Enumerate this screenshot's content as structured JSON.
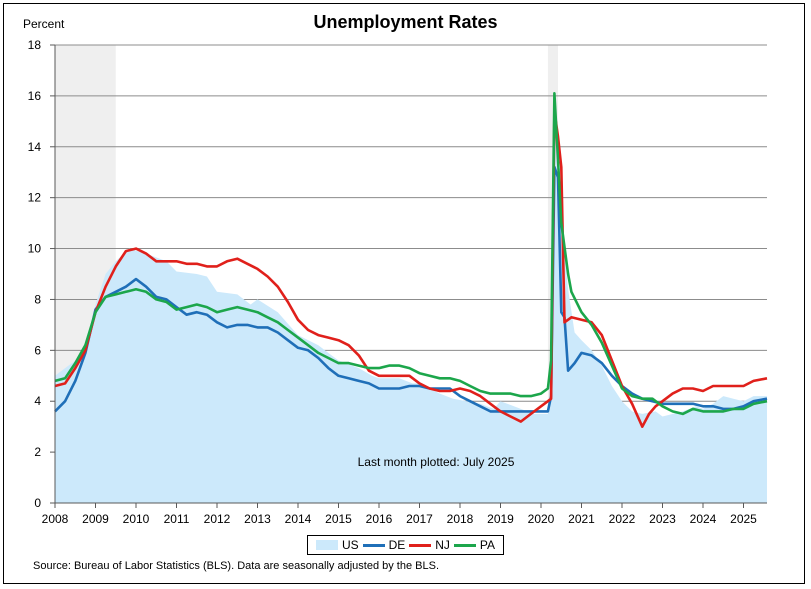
{
  "chart_data": {
    "type": "line",
    "title": "Unemployment Rates",
    "ylabel": "Percent",
    "xlabel": "",
    "ylim": [
      0,
      18
    ],
    "yticks": [
      0,
      2,
      4,
      6,
      8,
      10,
      12,
      14,
      16,
      18
    ],
    "xlim": [
      2008,
      2025.58
    ],
    "xticks": [
      "2008",
      "2009",
      "2010",
      "2011",
      "2012",
      "2013",
      "2014",
      "2015",
      "2016",
      "2017",
      "2018",
      "2019",
      "2020",
      "2021",
      "2022",
      "2023",
      "2024",
      "2025"
    ],
    "grid": "horizontal",
    "legend_position": "bottom",
    "recessions": [
      [
        2008.0,
        2009.5
      ],
      [
        2020.17,
        2020.42
      ]
    ],
    "annotation": "Last month plotted: July 2025",
    "source": "Source: Bureau of Labor Statistics (BLS). Data are seasonally adjusted by the BLS.",
    "series": [
      {
        "name": "US",
        "style": "area",
        "color": "#cce9fb",
        "points": [
          [
            2008,
            5.0
          ],
          [
            2008.5,
            5.6
          ],
          [
            2008.75,
            6.1
          ],
          [
            2009,
            7.8
          ],
          [
            2009.25,
            9.0
          ],
          [
            2009.5,
            9.5
          ],
          [
            2009.83,
            10.0
          ],
          [
            2010.25,
            9.8
          ],
          [
            2010.75,
            9.5
          ],
          [
            2011,
            9.1
          ],
          [
            2011.5,
            9.0
          ],
          [
            2011.75,
            8.9
          ],
          [
            2012,
            8.3
          ],
          [
            2012.5,
            8.2
          ],
          [
            2012.83,
            7.8
          ],
          [
            2013,
            8.0
          ],
          [
            2013.5,
            7.5
          ],
          [
            2013.83,
            6.9
          ],
          [
            2014,
            6.6
          ],
          [
            2014.5,
            6.2
          ],
          [
            2014.83,
            5.8
          ],
          [
            2015,
            5.6
          ],
          [
            2015.5,
            5.3
          ],
          [
            2015.83,
            5.0
          ],
          [
            2016,
            4.9
          ],
          [
            2016.5,
            4.9
          ],
          [
            2016.83,
            4.7
          ],
          [
            2017,
            4.7
          ],
          [
            2017.5,
            4.3
          ],
          [
            2017.83,
            4.1
          ],
          [
            2018.5,
            3.9
          ],
          [
            2018.83,
            3.7
          ],
          [
            2019,
            4.0
          ],
          [
            2019.5,
            3.7
          ],
          [
            2019.83,
            3.5
          ],
          [
            2020.17,
            3.5
          ],
          [
            2020.25,
            4.4
          ],
          [
            2020.33,
            14.8
          ],
          [
            2020.42,
            13.2
          ],
          [
            2020.5,
            11.0
          ],
          [
            2020.67,
            8.4
          ],
          [
            2020.83,
            6.7
          ],
          [
            2021,
            6.4
          ],
          [
            2021.25,
            6.0
          ],
          [
            2021.5,
            5.4
          ],
          [
            2021.75,
            4.6
          ],
          [
            2022,
            4.0
          ],
          [
            2022.25,
            3.6
          ],
          [
            2022.5,
            3.5
          ],
          [
            2022.83,
            3.6
          ],
          [
            2023,
            3.4
          ],
          [
            2023.5,
            3.6
          ],
          [
            2023.83,
            3.8
          ],
          [
            2024,
            3.7
          ],
          [
            2024.25,
            3.9
          ],
          [
            2024.5,
            4.2
          ],
          [
            2024.75,
            4.1
          ],
          [
            2025,
            4.0
          ],
          [
            2025.25,
            4.2
          ],
          [
            2025.5,
            4.2
          ],
          [
            2025.58,
            4.2
          ]
        ]
      },
      {
        "name": "DE",
        "style": "line",
        "color": "#1f6fb8",
        "points": [
          [
            2008,
            3.6
          ],
          [
            2008.25,
            4.0
          ],
          [
            2008.5,
            4.8
          ],
          [
            2008.75,
            5.9
          ],
          [
            2009,
            7.6
          ],
          [
            2009.25,
            8.1
          ],
          [
            2009.5,
            8.3
          ],
          [
            2009.75,
            8.5
          ],
          [
            2010,
            8.8
          ],
          [
            2010.25,
            8.5
          ],
          [
            2010.5,
            8.1
          ],
          [
            2010.75,
            8.0
          ],
          [
            2011,
            7.7
          ],
          [
            2011.25,
            7.4
          ],
          [
            2011.5,
            7.5
          ],
          [
            2011.75,
            7.4
          ],
          [
            2012,
            7.1
          ],
          [
            2012.25,
            6.9
          ],
          [
            2012.5,
            7.0
          ],
          [
            2012.75,
            7.0
          ],
          [
            2013,
            6.9
          ],
          [
            2013.25,
            6.9
          ],
          [
            2013.5,
            6.7
          ],
          [
            2013.75,
            6.4
          ],
          [
            2014,
            6.1
          ],
          [
            2014.25,
            6.0
          ],
          [
            2014.5,
            5.7
          ],
          [
            2014.75,
            5.3
          ],
          [
            2015,
            5.0
          ],
          [
            2015.25,
            4.9
          ],
          [
            2015.5,
            4.8
          ],
          [
            2015.75,
            4.7
          ],
          [
            2016,
            4.5
          ],
          [
            2016.5,
            4.5
          ],
          [
            2016.75,
            4.6
          ],
          [
            2017,
            4.6
          ],
          [
            2017.25,
            4.5
          ],
          [
            2017.5,
            4.5
          ],
          [
            2017.75,
            4.5
          ],
          [
            2018,
            4.2
          ],
          [
            2018.25,
            4.0
          ],
          [
            2018.5,
            3.8
          ],
          [
            2018.75,
            3.6
          ],
          [
            2019,
            3.6
          ],
          [
            2019.5,
            3.6
          ],
          [
            2019.75,
            3.6
          ],
          [
            2020,
            3.6
          ],
          [
            2020.17,
            3.6
          ],
          [
            2020.25,
            4.2
          ],
          [
            2020.33,
            13.2
          ],
          [
            2020.42,
            12.8
          ],
          [
            2020.5,
            7.5
          ],
          [
            2020.58,
            7.3
          ],
          [
            2020.67,
            5.2
          ],
          [
            2020.83,
            5.5
          ],
          [
            2021,
            5.9
          ],
          [
            2021.25,
            5.8
          ],
          [
            2021.5,
            5.5
          ],
          [
            2021.75,
            5.0
          ],
          [
            2022,
            4.6
          ],
          [
            2022.25,
            4.3
          ],
          [
            2022.5,
            4.1
          ],
          [
            2022.75,
            4.0
          ],
          [
            2023,
            3.9
          ],
          [
            2023.25,
            3.9
          ],
          [
            2023.5,
            3.9
          ],
          [
            2023.75,
            3.9
          ],
          [
            2024,
            3.8
          ],
          [
            2024.25,
            3.8
          ],
          [
            2024.5,
            3.7
          ],
          [
            2024.75,
            3.7
          ],
          [
            2025,
            3.8
          ],
          [
            2025.25,
            4.0
          ],
          [
            2025.58,
            4.1
          ]
        ]
      },
      {
        "name": "NJ",
        "style": "line",
        "color": "#e0201b",
        "points": [
          [
            2008,
            4.6
          ],
          [
            2008.25,
            4.7
          ],
          [
            2008.5,
            5.3
          ],
          [
            2008.75,
            6.0
          ],
          [
            2009,
            7.5
          ],
          [
            2009.25,
            8.5
          ],
          [
            2009.5,
            9.3
          ],
          [
            2009.75,
            9.9
          ],
          [
            2010,
            10.0
          ],
          [
            2010.25,
            9.8
          ],
          [
            2010.5,
            9.5
          ],
          [
            2010.75,
            9.5
          ],
          [
            2011,
            9.5
          ],
          [
            2011.25,
            9.4
          ],
          [
            2011.5,
            9.4
          ],
          [
            2011.75,
            9.3
          ],
          [
            2012,
            9.3
          ],
          [
            2012.25,
            9.5
          ],
          [
            2012.5,
            9.6
          ],
          [
            2012.75,
            9.4
          ],
          [
            2013,
            9.2
          ],
          [
            2013.25,
            8.9
          ],
          [
            2013.5,
            8.5
          ],
          [
            2013.75,
            7.9
          ],
          [
            2014,
            7.2
          ],
          [
            2014.25,
            6.8
          ],
          [
            2014.5,
            6.6
          ],
          [
            2014.75,
            6.5
          ],
          [
            2015,
            6.4
          ],
          [
            2015.25,
            6.2
          ],
          [
            2015.5,
            5.8
          ],
          [
            2015.75,
            5.2
          ],
          [
            2016,
            5.0
          ],
          [
            2016.25,
            5.0
          ],
          [
            2016.5,
            5.0
          ],
          [
            2016.75,
            5.0
          ],
          [
            2017,
            4.7
          ],
          [
            2017.25,
            4.5
          ],
          [
            2017.5,
            4.4
          ],
          [
            2017.75,
            4.4
          ],
          [
            2018,
            4.5
          ],
          [
            2018.25,
            4.4
          ],
          [
            2018.5,
            4.2
          ],
          [
            2018.75,
            3.9
          ],
          [
            2019,
            3.6
          ],
          [
            2019.25,
            3.4
          ],
          [
            2019.5,
            3.2
          ],
          [
            2019.75,
            3.5
          ],
          [
            2020,
            3.8
          ],
          [
            2020.17,
            4.0
          ],
          [
            2020.25,
            4.1
          ],
          [
            2020.33,
            15.4
          ],
          [
            2020.42,
            14.4
          ],
          [
            2020.5,
            13.2
          ],
          [
            2020.58,
            7.1
          ],
          [
            2020.75,
            7.3
          ],
          [
            2021,
            7.2
          ],
          [
            2021.25,
            7.1
          ],
          [
            2021.5,
            6.6
          ],
          [
            2021.75,
            5.6
          ],
          [
            2022,
            4.6
          ],
          [
            2022.25,
            3.9
          ],
          [
            2022.5,
            3.0
          ],
          [
            2022.67,
            3.5
          ],
          [
            2022.83,
            3.8
          ],
          [
            2023,
            4.0
          ],
          [
            2023.25,
            4.3
          ],
          [
            2023.5,
            4.5
          ],
          [
            2023.75,
            4.5
          ],
          [
            2024,
            4.4
          ],
          [
            2024.25,
            4.6
          ],
          [
            2024.5,
            4.6
          ],
          [
            2024.75,
            4.6
          ],
          [
            2025,
            4.6
          ],
          [
            2025.25,
            4.8
          ],
          [
            2025.58,
            4.9
          ]
        ]
      },
      {
        "name": "PA",
        "style": "line",
        "color": "#1ca64b",
        "points": [
          [
            2008,
            4.8
          ],
          [
            2008.25,
            4.9
          ],
          [
            2008.5,
            5.5
          ],
          [
            2008.75,
            6.2
          ],
          [
            2009,
            7.5
          ],
          [
            2009.25,
            8.1
          ],
          [
            2009.5,
            8.2
          ],
          [
            2009.75,
            8.3
          ],
          [
            2010,
            8.4
          ],
          [
            2010.25,
            8.3
          ],
          [
            2010.5,
            8.0
          ],
          [
            2010.75,
            7.9
          ],
          [
            2011,
            7.6
          ],
          [
            2011.25,
            7.7
          ],
          [
            2011.5,
            7.8
          ],
          [
            2011.75,
            7.7
          ],
          [
            2012,
            7.5
          ],
          [
            2012.25,
            7.6
          ],
          [
            2012.5,
            7.7
          ],
          [
            2012.75,
            7.6
          ],
          [
            2013,
            7.5
          ],
          [
            2013.25,
            7.3
          ],
          [
            2013.5,
            7.1
          ],
          [
            2013.75,
            6.8
          ],
          [
            2014,
            6.5
          ],
          [
            2014.25,
            6.2
          ],
          [
            2014.5,
            5.9
          ],
          [
            2014.75,
            5.7
          ],
          [
            2015,
            5.5
          ],
          [
            2015.25,
            5.5
          ],
          [
            2015.5,
            5.4
          ],
          [
            2015.75,
            5.3
          ],
          [
            2016,
            5.3
          ],
          [
            2016.25,
            5.4
          ],
          [
            2016.5,
            5.4
          ],
          [
            2016.75,
            5.3
          ],
          [
            2017,
            5.1
          ],
          [
            2017.25,
            5.0
          ],
          [
            2017.5,
            4.9
          ],
          [
            2017.75,
            4.9
          ],
          [
            2018,
            4.8
          ],
          [
            2018.25,
            4.6
          ],
          [
            2018.5,
            4.4
          ],
          [
            2018.75,
            4.3
          ],
          [
            2019,
            4.3
          ],
          [
            2019.25,
            4.3
          ],
          [
            2019.5,
            4.2
          ],
          [
            2019.75,
            4.2
          ],
          [
            2020,
            4.3
          ],
          [
            2020.17,
            4.5
          ],
          [
            2020.25,
            5.6
          ],
          [
            2020.33,
            16.1
          ],
          [
            2020.42,
            13.5
          ],
          [
            2020.5,
            11.0
          ],
          [
            2020.67,
            9.0
          ],
          [
            2020.75,
            8.3
          ],
          [
            2021,
            7.5
          ],
          [
            2021.25,
            7.0
          ],
          [
            2021.5,
            6.3
          ],
          [
            2021.75,
            5.4
          ],
          [
            2022,
            4.5
          ],
          [
            2022.25,
            4.2
          ],
          [
            2022.5,
            4.1
          ],
          [
            2022.75,
            4.1
          ],
          [
            2023,
            3.8
          ],
          [
            2023.25,
            3.6
          ],
          [
            2023.5,
            3.5
          ],
          [
            2023.75,
            3.7
          ],
          [
            2024,
            3.6
          ],
          [
            2024.25,
            3.6
          ],
          [
            2024.5,
            3.6
          ],
          [
            2024.75,
            3.7
          ],
          [
            2025,
            3.7
          ],
          [
            2025.25,
            3.9
          ],
          [
            2025.58,
            4.0
          ]
        ]
      }
    ]
  }
}
